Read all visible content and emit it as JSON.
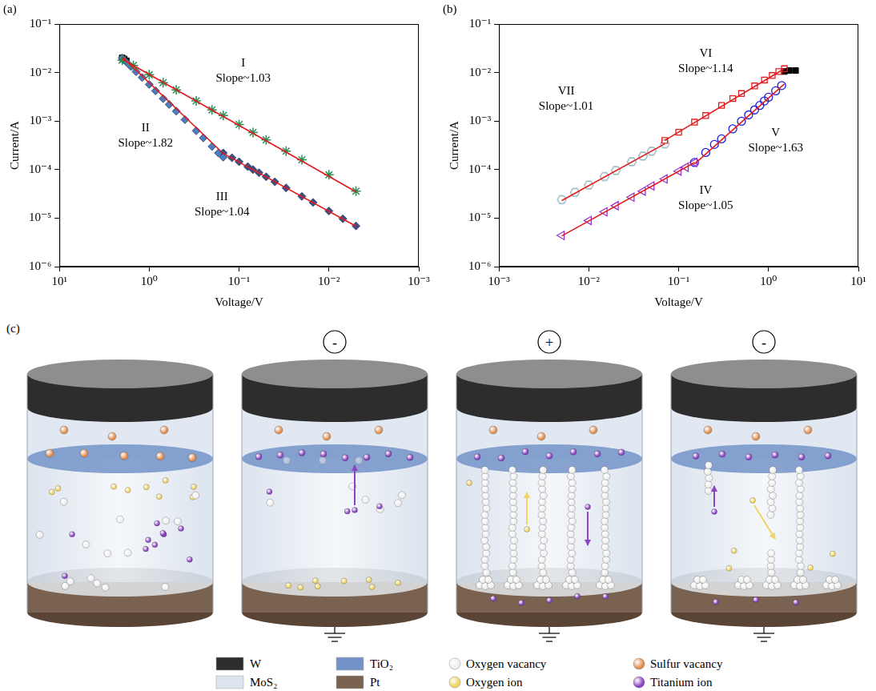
{
  "chart_data": [
    {
      "panel": "(a)",
      "type": "scatter",
      "log": true,
      "grid": false,
      "x_label": "Voltage/V",
      "y_label": "Current/A",
      "xlim": [
        10,
        0.001
      ],
      "ylim": [
        1e-06,
        0.1
      ],
      "xticks": [
        {
          "value": 10,
          "label": "10¹"
        },
        {
          "value": 1,
          "label": "10⁰"
        },
        {
          "value": 0.1,
          "label": "10⁻¹"
        },
        {
          "value": 0.01,
          "label": "10⁻²"
        },
        {
          "value": 0.001,
          "label": "10⁻³"
        }
      ],
      "yticks": [
        {
          "value": 1e-06,
          "label": "10⁻⁶"
        },
        {
          "value": 1e-05,
          "label": "10⁻⁵"
        },
        {
          "value": 0.0001,
          "label": "10⁻⁴"
        },
        {
          "value": 0.001,
          "label": "10⁻³"
        },
        {
          "value": 0.01,
          "label": "10⁻²"
        },
        {
          "value": 0.1,
          "label": "10⁻¹"
        }
      ],
      "series": [
        {
          "type": "scatter",
          "color": "#2e8b57",
          "marker": "star",
          "x": [
            2,
            1.5,
            1,
            0.7,
            0.5,
            0.3,
            0.2,
            0.15,
            0.1,
            0.07,
            0.05,
            0.03,
            0.02,
            0.01,
            0.005
          ],
          "values": [
            0.018,
            0.014,
            0.009,
            0.0062,
            0.0044,
            0.0026,
            0.0017,
            0.0013,
            0.00085,
            0.00058,
            0.00041,
            0.00024,
            0.00016,
            7.8e-05,
            3.6e-05
          ]
        },
        {
          "type": "scatter",
          "color": "#4a7fc1",
          "marker": "diamond",
          "x": [
            2,
            1.8,
            1.6,
            1.4,
            1.2,
            1,
            0.85,
            0.7,
            0.6,
            0.5,
            0.4,
            0.3,
            0.25,
            0.2,
            0.17,
            0.15
          ],
          "values": [
            0.02,
            0.0165,
            0.0133,
            0.0104,
            0.0079,
            0.0057,
            0.0042,
            0.0029,
            0.0022,
            0.0016,
            0.00107,
            0.00063,
            0.00045,
            0.0003,
            0.00022,
            0.00018
          ]
        },
        {
          "type": "scatter",
          "color": "#3f4f86",
          "marker": "diamond",
          "x": [
            0.15,
            0.12,
            0.1,
            0.08,
            0.07,
            0.06,
            0.05,
            0.04,
            0.03,
            0.02,
            0.015,
            0.01,
            0.007,
            0.005
          ],
          "values": [
            0.00022,
            0.000175,
            0.000145,
            0.000115,
            0.0001,
            8.6e-05,
            7.1e-05,
            5.6e-05,
            4.2e-05,
            2.8e-05,
            2.1e-05,
            1.4e-05,
            9.7e-06,
            6.9e-06
          ]
        },
        {
          "type": "scatter",
          "color": "#000000",
          "marker": "square",
          "x": [
            2,
            1.9,
            1.8
          ],
          "values": [
            0.02,
            0.019,
            0.0175
          ]
        },
        {
          "type": "line",
          "color": "#e41a1c",
          "line_style": "solid",
          "x": [
            2,
            0.005
          ],
          "values": [
            0.019,
            3.5e-05
          ]
        },
        {
          "type": "line",
          "color": "#e41a1c",
          "line_style": "solid",
          "x": [
            2,
            0.16
          ],
          "values": [
            0.021,
            0.00024
          ]
        },
        {
          "type": "line",
          "color": "#e41a1c",
          "line_style": "solid",
          "x": [
            0.16,
            0.005
          ],
          "values": [
            0.00023,
            6.8e-06
          ]
        }
      ],
      "annotations": [
        {
          "lines": [
            "I",
            "Slope~1.03"
          ],
          "x": 0.09,
          "y": 0.011
        },
        {
          "lines": [
            "II",
            "Slope~1.82"
          ],
          "x": 1.1,
          "y": 0.0005
        },
        {
          "lines": [
            "III",
            "Slope~1.04"
          ],
          "x": 0.155,
          "y": 1.9e-05
        }
      ]
    },
    {
      "panel": "(b)",
      "type": "scatter",
      "log": true,
      "grid": false,
      "x_label": "Voltage/V",
      "y_label": "Current/A",
      "xlim": [
        0.001,
        10
      ],
      "ylim": [
        1e-06,
        0.1
      ],
      "xticks": [
        {
          "value": 0.001,
          "label": "10⁻³"
        },
        {
          "value": 0.01,
          "label": "10⁻²"
        },
        {
          "value": 0.1,
          "label": "10⁻¹"
        },
        {
          "value": 1,
          "label": "10⁰"
        },
        {
          "value": 10,
          "label": "10¹"
        }
      ],
      "yticks": [
        {
          "value": 1e-06,
          "label": "10⁻⁶"
        },
        {
          "value": 1e-05,
          "label": "10⁻⁵"
        },
        {
          "value": 0.0001,
          "label": "10⁻⁴"
        },
        {
          "value": 0.001,
          "label": "10⁻³"
        },
        {
          "value": 0.01,
          "label": "10⁻²"
        },
        {
          "value": 0.1,
          "label": "10⁻¹"
        }
      ],
      "series": [
        {
          "type": "scatter",
          "color": "#9932cc",
          "marker": "triangle_left_open",
          "x": [
            0.005,
            0.01,
            0.015,
            0.02,
            0.03,
            0.04,
            0.05,
            0.07,
            0.1,
            0.12,
            0.15
          ],
          "values": [
            4.4e-06,
            8.9e-06,
            1.35e-05,
            1.8e-05,
            2.7e-05,
            3.6e-05,
            4.6e-05,
            6.4e-05,
            9.3e-05,
            0.000112,
            0.00014
          ]
        },
        {
          "type": "scatter",
          "color": "#1f1fe0",
          "marker": "circle_open",
          "x": [
            0.15,
            0.2,
            0.25,
            0.3,
            0.4,
            0.5,
            0.6,
            0.7,
            0.8,
            0.9,
            1,
            1.2,
            1.4
          ],
          "values": [
            0.00014,
            0.000225,
            0.00033,
            0.00043,
            0.00069,
            0.00099,
            0.00134,
            0.0017,
            0.0021,
            0.0026,
            0.0031,
            0.0042,
            0.0054
          ]
        },
        {
          "type": "scatter",
          "color": "#e02020",
          "marker": "square_open",
          "x": [
            0.07,
            0.1,
            0.15,
            0.2,
            0.3,
            0.4,
            0.5,
            0.7,
            0.9,
            1.1,
            1.3,
            1.5
          ],
          "values": [
            0.0004,
            0.00059,
            0.00095,
            0.0013,
            0.0021,
            0.0029,
            0.0037,
            0.0053,
            0.007,
            0.0087,
            0.0105,
            0.012
          ]
        },
        {
          "type": "scatter",
          "color": "#8fb1bd",
          "marker": "hexagon_open",
          "x": [
            0.005,
            0.007,
            0.01,
            0.015,
            0.02,
            0.03,
            0.04,
            0.05,
            0.07
          ],
          "values": [
            2.4e-05,
            3.4e-05,
            4.8e-05,
            7.2e-05,
            9.6e-05,
            0.000145,
            0.00019,
            0.00024,
            0.00034
          ]
        },
        {
          "type": "scatter",
          "color": "#000000",
          "marker": "square",
          "x": [
            1.5,
            1.7,
            2
          ],
          "values": [
            0.0105,
            0.011,
            0.011
          ]
        },
        {
          "type": "line",
          "color": "#e41a1c",
          "line_style": "solid",
          "x": [
            0.005,
            0.15
          ],
          "values": [
            4.3e-06,
            0.00014
          ]
        },
        {
          "type": "line",
          "color": "#e41a1c",
          "line_style": "solid",
          "x": [
            0.15,
            1.5
          ],
          "values": [
            0.00013,
            0.0058
          ]
        },
        {
          "type": "line",
          "color": "#e41a1c",
          "line_style": "solid",
          "x": [
            0.07,
            1.5
          ],
          "values": [
            0.0004,
            0.012
          ]
        },
        {
          "type": "line",
          "color": "#e41a1c",
          "line_style": "solid",
          "x": [
            0.005,
            0.07
          ],
          "values": [
            2.3e-05,
            0.00034
          ]
        }
      ],
      "annotations": [
        {
          "lines": [
            "VII",
            "Slope~1.01"
          ],
          "x": 0.0056,
          "y": 0.0029
        },
        {
          "lines": [
            "VI",
            "Slope~1.14"
          ],
          "x": 0.2,
          "y": 0.017
        },
        {
          "lines": [
            "V",
            "Slope~1.63"
          ],
          "x": 1.2,
          "y": 0.0004
        },
        {
          "lines": [
            "IV",
            "Slope~1.05"
          ],
          "x": 0.2,
          "y": 2.6e-05
        }
      ]
    }
  ],
  "diagram": {
    "panel": "(c)",
    "stages": [
      {
        "polarity": null,
        "grounded": false
      },
      {
        "polarity": "-",
        "grounded": true
      },
      {
        "polarity": "+",
        "grounded": true
      },
      {
        "polarity": "-",
        "grounded": true
      }
    ],
    "legend": [
      {
        "text": "W",
        "color": "#2d2d2d",
        "kind": "layer"
      },
      {
        "text": "MoS₂",
        "color": "#dce4ee",
        "kind": "layer"
      },
      {
        "text": "TiO₂",
        "color": "#7393c8",
        "kind": "layer"
      },
      {
        "text": "Pt",
        "color": "#7a6251",
        "kind": "layer"
      },
      {
        "text": "Oxygen vacancy",
        "color": "#eeeeee",
        "kind": "particle"
      },
      {
        "text": "Oxygen ion",
        "color": "#f0d465",
        "kind": "particle"
      },
      {
        "text": "Sulfur vacancy",
        "color": "#e08f52",
        "kind": "particle"
      },
      {
        "text": "Titanium ion",
        "color": "#8b45c2",
        "kind": "particle"
      }
    ]
  }
}
